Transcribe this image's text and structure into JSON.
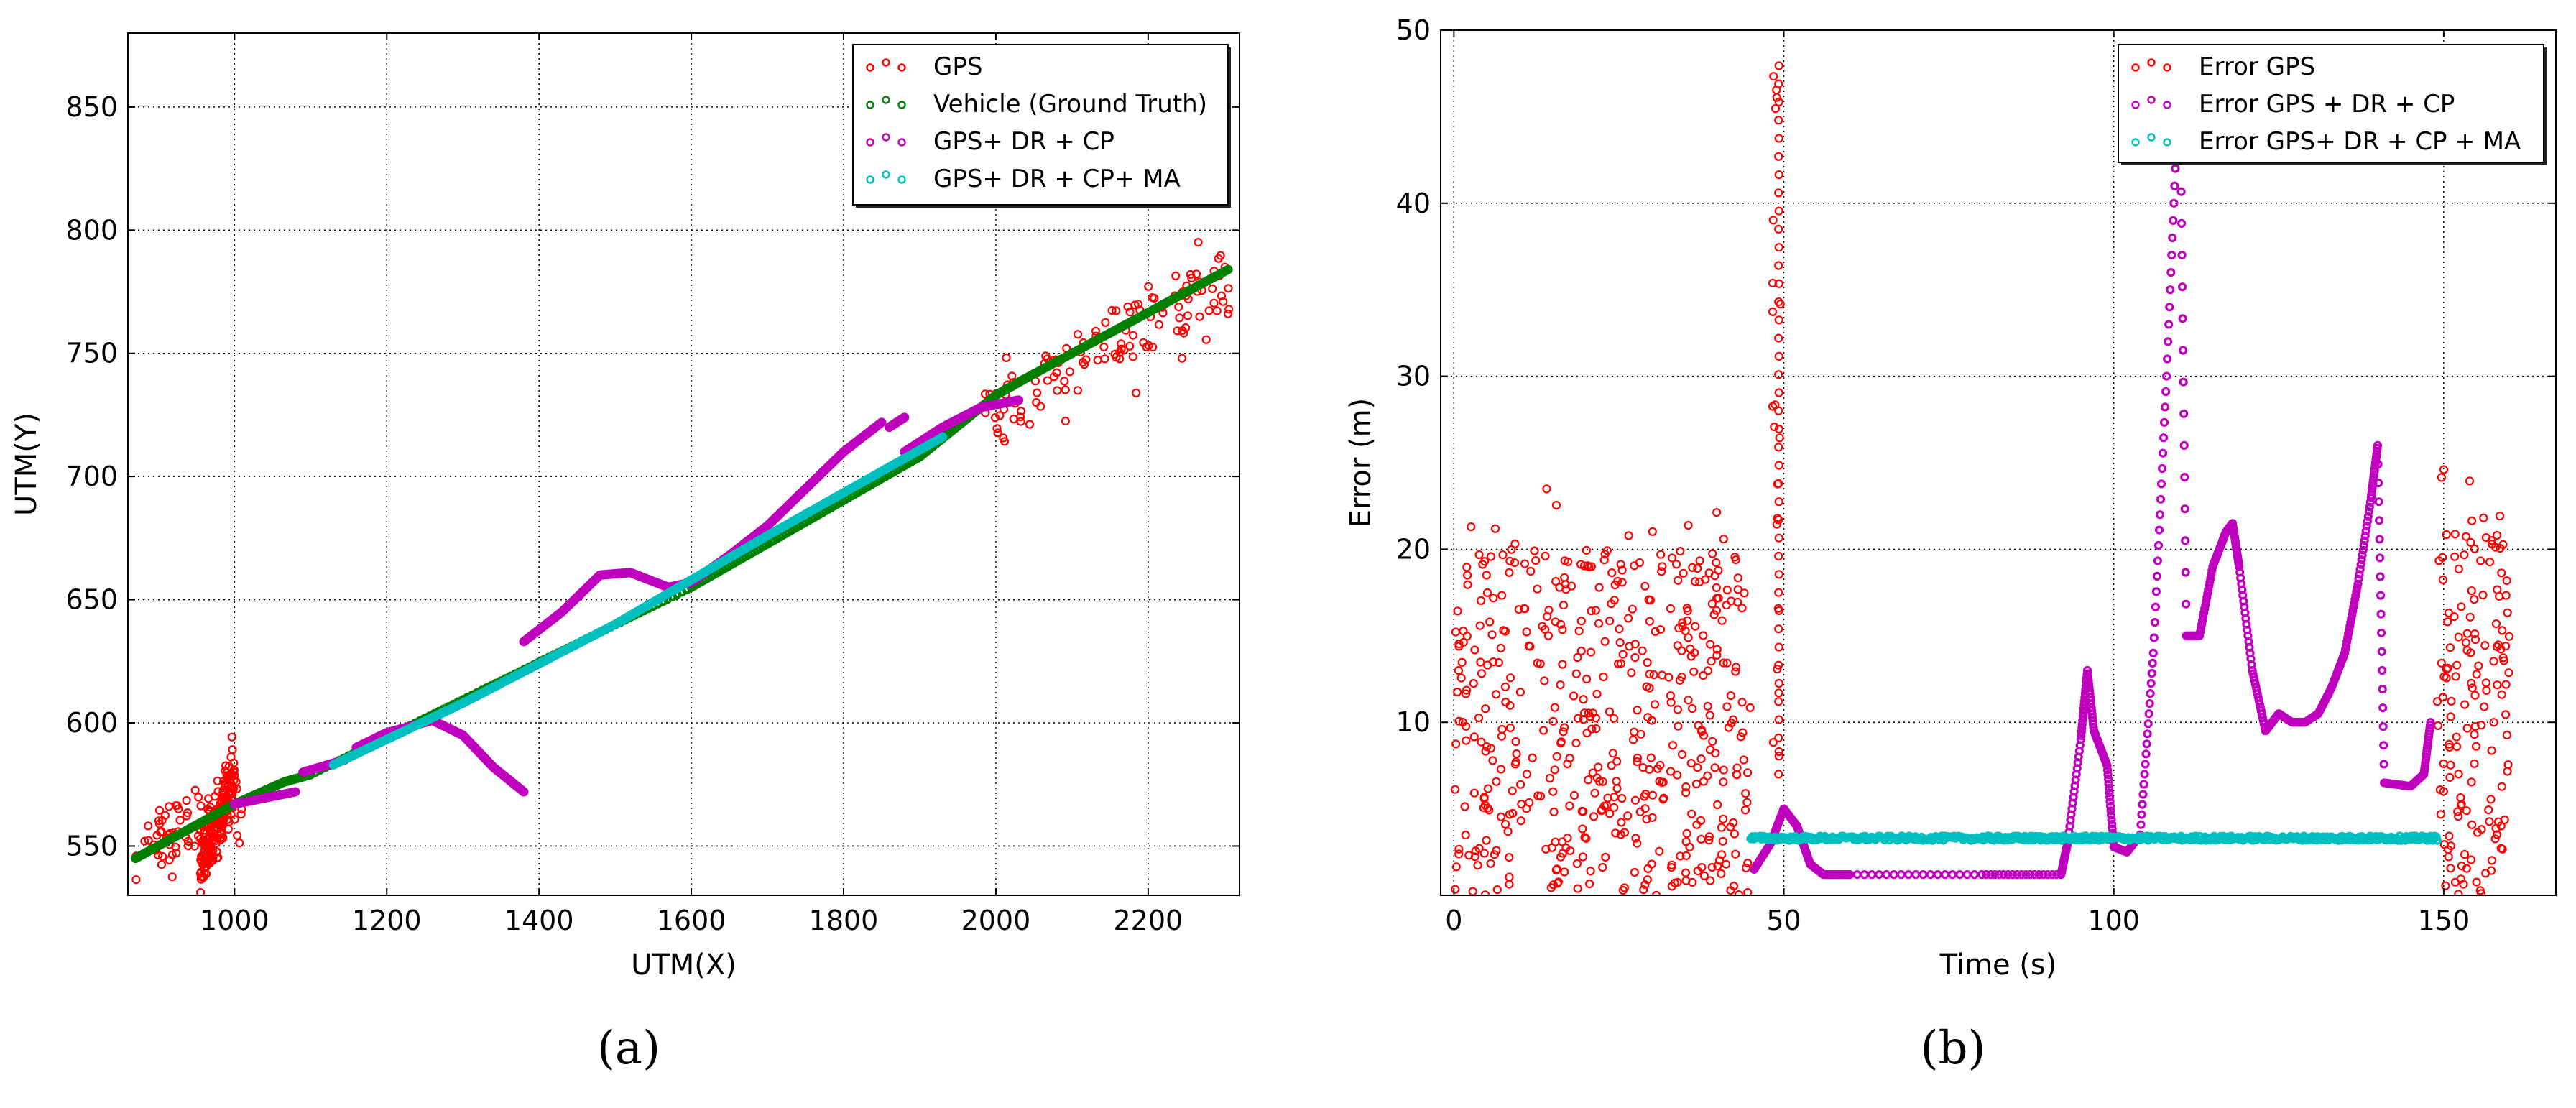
{
  "chart_data": [
    {
      "id": "a",
      "type": "scatter",
      "caption": "(a)",
      "xlabel": "UTM(X)",
      "ylabel": "UTM(Y)",
      "xlim": [
        860,
        2320
      ],
      "ylim": [
        530,
        880
      ],
      "xticks": [
        1000,
        1200,
        1400,
        1600,
        1800,
        2000,
        2200
      ],
      "yticks": [
        550,
        600,
        650,
        700,
        750,
        800,
        850
      ],
      "grid": true,
      "legend_position": "upper-right",
      "series": [
        {
          "name": "GPS",
          "color": "#ff0000",
          "marker": "open-circle",
          "segments": [
            {
              "x": [
                870,
                1010
              ],
              "y_center": [
                548,
                568
              ],
              "noise": 12,
              "n": 90
            },
            {
              "x": [
                955,
                1000
              ],
              "y_center": [
                540,
                580
              ],
              "noise": 10,
              "n": 180
            },
            {
              "x": [
                1985,
                2315
              ],
              "y_center": [
                725,
                780
              ],
              "noise": 14,
              "n": 130
            }
          ]
        },
        {
          "name": "Vehicle (Ground Truth)",
          "color": "#007f00",
          "marker": "open-circle",
          "points": [
            [
              870,
              545
            ],
            [
              1000,
              567
            ],
            [
              1065,
              576
            ],
            [
              1100,
              579
            ],
            [
              1600,
              655
            ],
            [
              1900,
              708
            ],
            [
              2000,
              733
            ],
            [
              2040,
              740
            ],
            [
              2305,
              784
            ]
          ]
        },
        {
          "name": "GPS+ DR + CP",
          "color": "#bf00bf",
          "marker": "open-circle",
          "paths": [
            [
              [
                1000,
                567
              ],
              [
                1080,
                572
              ]
            ],
            [
              [
                1090,
                580
              ],
              [
                1145,
                585
              ]
            ],
            [
              [
                1160,
                590
              ],
              [
                1200,
                596
              ],
              [
                1260,
                601
              ],
              [
                1300,
                595
              ],
              [
                1340,
                582
              ],
              [
                1380,
                572
              ]
            ],
            [
              [
                1380,
                633
              ],
              [
                1430,
                645
              ],
              [
                1480,
                660
              ],
              [
                1520,
                661
              ],
              [
                1570,
                655
              ],
              [
                1600,
                657
              ],
              [
                1650,
                668
              ],
              [
                1700,
                680
              ],
              [
                1750,
                695
              ],
              [
                1800,
                710
              ],
              [
                1850,
                722
              ]
            ],
            [
              [
                1860,
                720
              ],
              [
                1880,
                724
              ]
            ],
            [
              [
                1880,
                710
              ],
              [
                1930,
                720
              ],
              [
                1980,
                728
              ],
              [
                2030,
                731
              ]
            ]
          ]
        },
        {
          "name": "GPS+ DR + CP+ MA",
          "color": "#00bfbf",
          "marker": "open-circle",
          "points": [
            [
              1130,
              583
            ],
            [
              1300,
              608
            ],
            [
              1500,
              640
            ],
            [
              1700,
              676
            ],
            [
              1930,
              716
            ]
          ]
        }
      ]
    },
    {
      "id": "b",
      "type": "scatter",
      "caption": "(b)",
      "xlabel": "Time (s)",
      "ylabel": "Error (m)",
      "xlim": [
        -2,
        167
      ],
      "ylim": [
        0,
        50
      ],
      "xticks": [
        0,
        50,
        100,
        150
      ],
      "yticks": [
        10,
        20,
        30,
        40,
        50
      ],
      "grid": true,
      "legend_position": "upper-right",
      "series": [
        {
          "name": "Error GPS",
          "color": "#ff0000",
          "marker": "open-circle",
          "segments": [
            {
              "t": [
                0,
                45
              ],
              "y_range": [
                0,
                20
              ],
              "n": 500
            },
            {
              "t": [
                48,
                50
              ],
              "y_range": [
                7,
                48
              ],
              "n": 60
            },
            {
              "t": [
                149,
                160
              ],
              "y_range": [
                0,
                22
              ],
              "n": 150
            }
          ]
        },
        {
          "name": "Error GPS + DR + CP",
          "color": "#bf00bf",
          "marker": "open-circle",
          "points": [
            [
              45.5,
              1.5
            ],
            [
              48,
              3
            ],
            [
              50,
              5
            ],
            [
              52,
              4
            ],
            [
              54,
              1.8
            ],
            [
              56,
              1.2
            ],
            [
              60,
              1.2
            ],
            [
              80,
              1.2
            ],
            [
              92,
              1.2
            ],
            [
              93,
              3
            ],
            [
              95,
              9
            ],
            [
              96,
              13
            ],
            [
              97,
              9.5
            ],
            [
              99,
              7.5
            ],
            [
              100,
              2.8
            ],
            [
              102,
              2.5
            ],
            [
              104,
              3.5
            ],
            [
              106,
              14
            ],
            [
              108,
              30
            ],
            [
              110,
              48
            ],
            [
              111,
              15
            ],
            [
              113,
              15
            ],
            [
              115,
              19
            ],
            [
              117,
              21
            ],
            [
              118,
              21.5
            ],
            [
              119,
              19
            ],
            [
              121,
              13
            ],
            [
              123,
              9.5
            ],
            [
              125,
              10.5
            ],
            [
              127,
              10
            ],
            [
              129,
              10
            ],
            [
              131,
              10.5
            ],
            [
              133,
              12
            ],
            [
              135,
              14
            ],
            [
              137,
              18
            ],
            [
              139,
              23
            ],
            [
              140,
              26
            ],
            [
              141,
              6.5
            ],
            [
              145,
              6.3
            ],
            [
              147,
              7
            ],
            [
              148,
              10
            ]
          ]
        },
        {
          "name": "Error GPS+ DR + CP + MA",
          "color": "#00bfbf",
          "marker": "open-circle",
          "points": [
            [
              45,
              3.3
            ],
            [
              80,
              3.3
            ],
            [
              100,
              3.3
            ],
            [
              130,
              3.3
            ],
            [
              149,
              3.3
            ]
          ]
        }
      ]
    }
  ]
}
